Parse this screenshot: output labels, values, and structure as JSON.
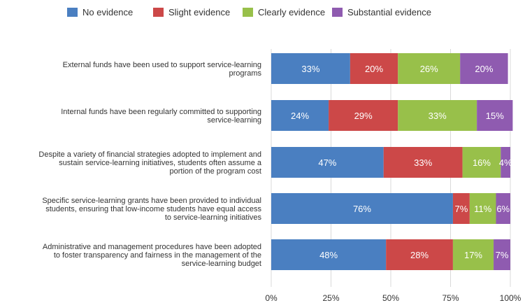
{
  "chart_data": {
    "type": "bar",
    "orientation": "horizontal",
    "stacked": true,
    "categories": [
      [
        "External funds have been used to support service-learning",
        "programs"
      ],
      [
        "Internal funds have been regularly committed to supporting",
        "service-learning"
      ],
      [
        "Despite a variety of financial strategies adopted to implement and",
        "sustain service-learning initiatives, students often assume a",
        "portion of the program cost"
      ],
      [
        "Specific service-learning grants have been provided to individual",
        "students, ensuring that low-income students have equal access",
        "to service-learning initiatives"
      ],
      [
        "Administrative and management procedures have been adopted",
        "to foster transparency and fairness in the management of the",
        "service-learning budget"
      ]
    ],
    "series": [
      {
        "name": "No evidence",
        "color": "#4a7fc1",
        "values": [
          33,
          24,
          47,
          76,
          48
        ]
      },
      {
        "name": "Slight evidence",
        "color": "#cc4848",
        "values": [
          20,
          29,
          33,
          7,
          28
        ]
      },
      {
        "name": "Clearly evidence",
        "color": "#98c04a",
        "values": [
          26,
          33,
          16,
          11,
          17
        ]
      },
      {
        "name": "Substantial evidence",
        "color": "#8f5bb0",
        "values": [
          20,
          15,
          4,
          6,
          7
        ]
      }
    ],
    "data_labels": [
      [
        "33%",
        "24%",
        "47%",
        "76%",
        "48%"
      ],
      [
        "20%",
        "29%",
        "33%",
        "7%",
        "28%"
      ],
      [
        "26%",
        "33%",
        "16%",
        "11%",
        "17%"
      ],
      [
        "20%",
        "15%",
        "4%",
        "6%",
        "7%"
      ]
    ],
    "xlim": [
      0,
      100
    ],
    "x_ticks": [
      "0%",
      "25%",
      "50%",
      "75%",
      "100%"
    ],
    "grid": "vertical",
    "legend_position": "top"
  }
}
